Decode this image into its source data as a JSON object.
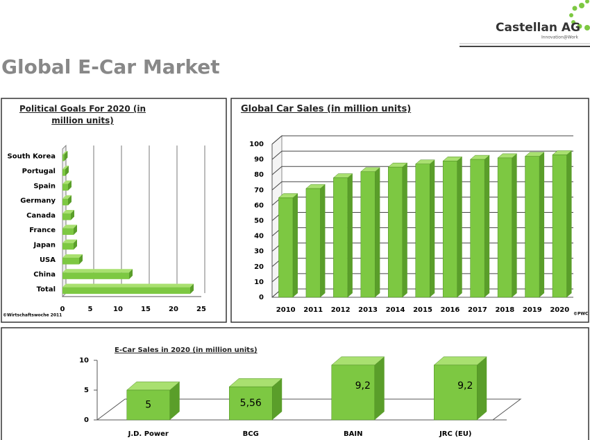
{
  "header": {
    "company": "Castellan AG",
    "tagline": "Innovation@Work"
  },
  "title": "Global E-Car Market",
  "chart_data": [
    {
      "type": "bar",
      "orientation": "horizontal",
      "title": "Political Goals For 2020 (in million units)",
      "categories": [
        "South Korea",
        "Portugal",
        "Spain",
        "Germany",
        "Canada",
        "France",
        "Japan",
        "USA",
        "China",
        "Total"
      ],
      "values": [
        0.3,
        0.5,
        1,
        1,
        1.5,
        2,
        2,
        3,
        12,
        23
      ],
      "color": "#7dc842",
      "xlim": [
        0,
        25
      ],
      "xticks": [
        0,
        5,
        10,
        15,
        20,
        25
      ],
      "grid": true,
      "source": "©Wirtschaftswoche 2011"
    },
    {
      "type": "bar",
      "title": "Global Car Sales (in million units)",
      "categories": [
        "2010",
        "2011",
        "2012",
        "2013",
        "2014",
        "2015",
        "2016",
        "2017",
        "2018",
        "2019",
        "2020"
      ],
      "values": [
        65,
        71,
        78,
        82,
        85,
        87,
        89,
        90,
        91,
        92,
        93
      ],
      "color": "#7dc842",
      "ylim": [
        0,
        100
      ],
      "yticks": [
        0,
        10,
        20,
        30,
        40,
        50,
        60,
        70,
        80,
        90,
        100
      ],
      "grid": true,
      "source": "©PWC"
    },
    {
      "type": "bar",
      "title": "E-Car Sales in 2020 (in million units)",
      "categories": [
        "J.D. Power",
        "BCG",
        "BAIN",
        "JRC (EU)"
      ],
      "values": [
        5,
        5.56,
        9.2,
        9.2
      ],
      "value_labels": [
        "5",
        "5,56",
        "9,2",
        "9,2"
      ],
      "color": "#7dc842",
      "ylim": [
        0,
        10
      ],
      "yticks": [
        0,
        5,
        10
      ],
      "grid": false
    }
  ]
}
